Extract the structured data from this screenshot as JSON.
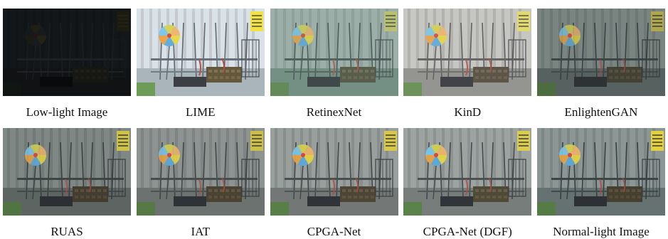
{
  "figure": {
    "rows": [
      {
        "panels": [
          {
            "caption": "Low-light Image",
            "style": {
              "bg": "#16191c",
              "wall": "#1f2428",
              "floor": "#1a1d1e",
              "rug": "#23221d",
              "poles": "#2a2e32",
              "sign": "#2a2a18",
              "signtext": "#3a3a2a",
              "brightness": 0.18,
              "tint": "#0c0f12",
              "tintOpacity": 0.0
            }
          },
          {
            "caption": "LIME",
            "style": {
              "bg": "#cfd6dc",
              "wall": "#d9e2e8",
              "floor": "#a7b3b9",
              "rug": "#5c5033",
              "poles": "#59626a",
              "sign": "#f4e23c",
              "signtext": "#3a3a3a",
              "brightness": 1.0,
              "tint": "#e8f0f4",
              "tintOpacity": 0.05
            }
          },
          {
            "caption": "RetinexNet",
            "style": {
              "bg": "#92a5a0",
              "wall": "#a2b4ad",
              "floor": "#6f8a7e",
              "rug": "#4b4a36",
              "poles": "#3c4a48",
              "sign": "#c8c866",
              "signtext": "#2e3430",
              "brightness": 0.85,
              "tint": "#8aa69a",
              "tintOpacity": 0.22
            }
          },
          {
            "caption": "KinD",
            "style": {
              "bg": "#b7b7b4",
              "wall": "#c7c6c2",
              "floor": "#8e8f8a",
              "rug": "#4f4637",
              "poles": "#535353",
              "sign": "#e6dc62",
              "signtext": "#3b3b3b",
              "brightness": 0.92,
              "tint": "#c8c6c2",
              "tintOpacity": 0.12
            }
          },
          {
            "caption": "EnlightenGAN",
            "style": {
              "bg": "#707b7a",
              "wall": "#7f8a88",
              "floor": "#566160",
              "rug": "#3f3a2b",
              "poles": "#323a3b",
              "sign": "#bcb24a",
              "signtext": "#2a2e2e",
              "brightness": 0.7,
              "tint": "#5c6a68",
              "tintOpacity": 0.15
            }
          }
        ]
      },
      {
        "panels": [
          {
            "caption": "RUAS",
            "style": {
              "bg": "#717877",
              "wall": "#838a88",
              "floor": "#5d6462",
              "rug": "#41392a",
              "poles": "#353b3c",
              "sign": "#d6c844",
              "signtext": "#2a2c2c",
              "brightness": 0.75,
              "tint": "#6b7271",
              "tintOpacity": 0.08
            }
          },
          {
            "caption": "IAT",
            "style": {
              "bg": "#7e8583",
              "wall": "#8e9593",
              "floor": "#6b716f",
              "rug": "#463e2e",
              "poles": "#3c4243",
              "sign": "#d2c546",
              "signtext": "#2c2e2e",
              "brightness": 0.78,
              "tint": "#7b8280",
              "tintOpacity": 0.08
            }
          },
          {
            "caption": "CPGA-Net",
            "style": {
              "bg": "#8b9290",
              "wall": "#9aa19f",
              "floor": "#727876",
              "rug": "#4a4231",
              "poles": "#3e4546",
              "sign": "#dccd48",
              "signtext": "#2c2e2e",
              "brightness": 0.82,
              "tint": "#8a908e",
              "tintOpacity": 0.06
            }
          },
          {
            "caption": "CPGA-Net (DGF)",
            "style": {
              "bg": "#8f9593",
              "wall": "#9ea4a2",
              "floor": "#767c7a",
              "rug": "#4c4432",
              "poles": "#404647",
              "sign": "#e0d04a",
              "signtext": "#2c2e2e",
              "brightness": 0.84,
              "tint": "#8f9593",
              "tintOpacity": 0.06
            }
          },
          {
            "caption": "Normal-light Image",
            "style": {
              "bg": "#7d8685",
              "wall": "#8e9796",
              "floor": "#667070",
              "rug": "#433b2b",
              "poles": "#343c3d",
              "sign": "#e8d43c",
              "signtext": "#2a2c2c",
              "brightness": 0.8,
              "tint": "#7a8483",
              "tintOpacity": 0.05
            }
          }
        ]
      }
    ]
  }
}
